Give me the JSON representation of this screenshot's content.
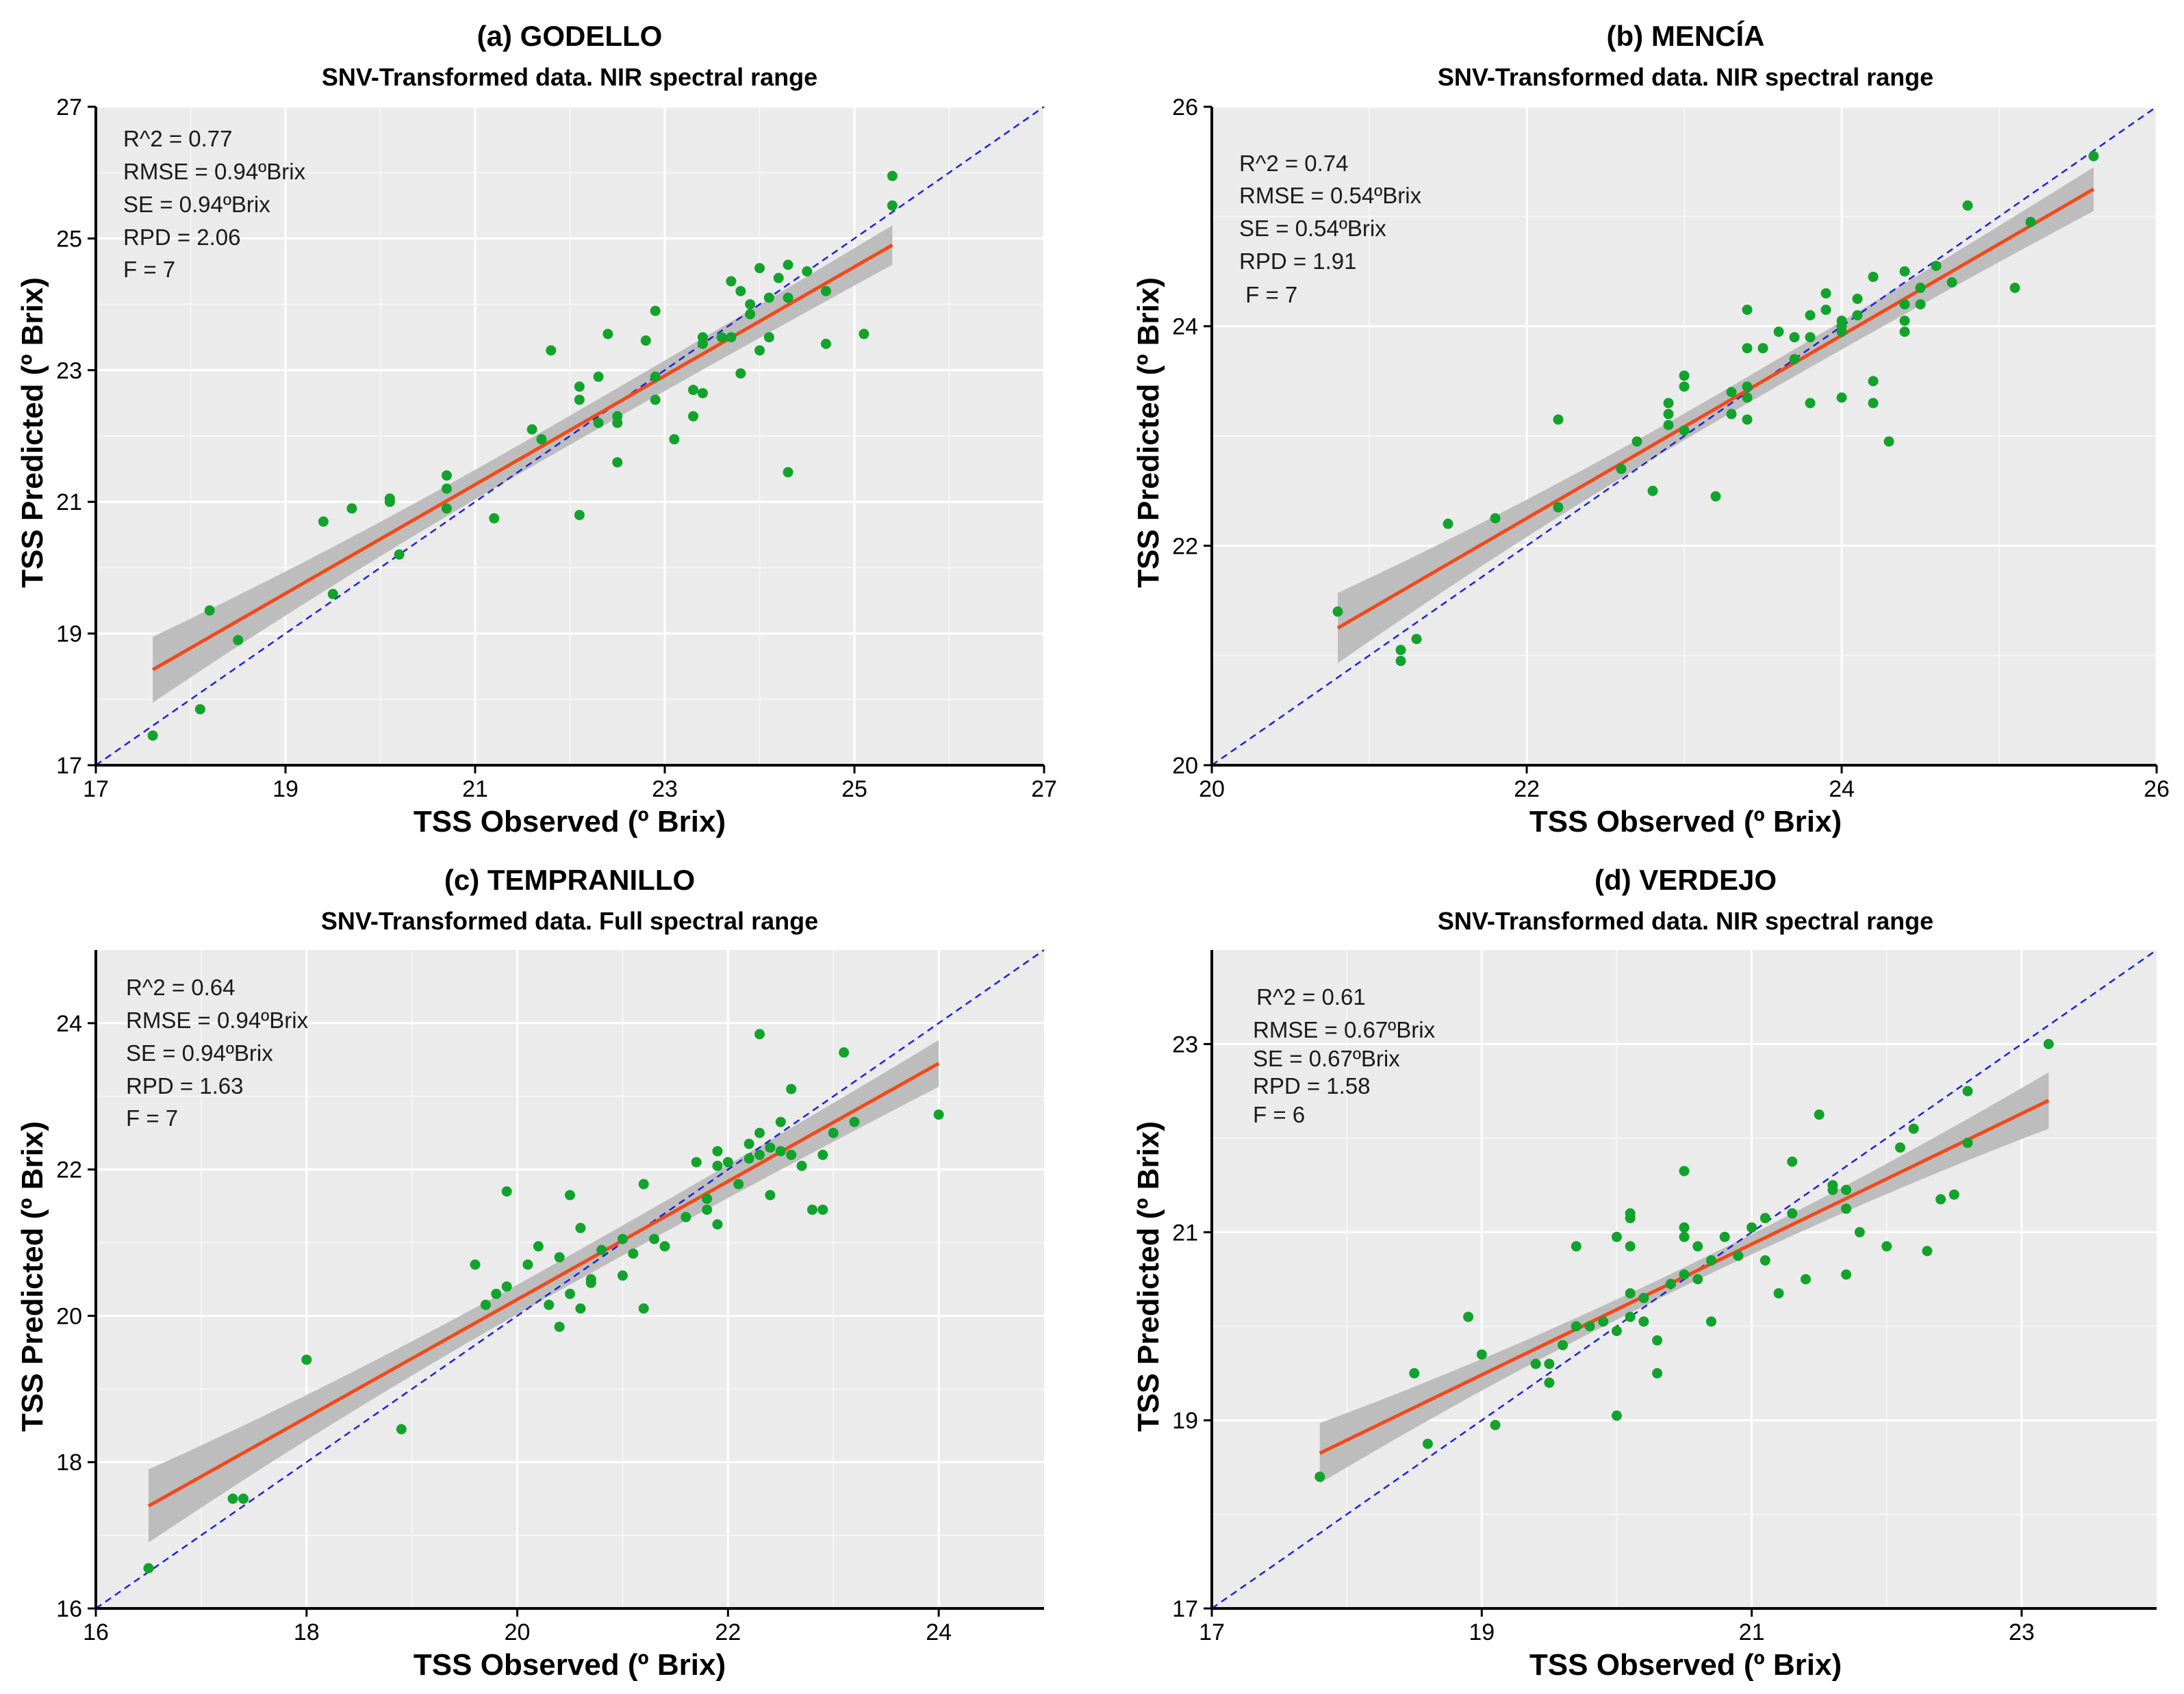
{
  "chart_data": [
    {
      "type": "scatter",
      "panel": "(a) GODELLO",
      "title": "(a) GODELLO",
      "subtitle": "SNV-Transformed data. NIR spectral range",
      "xlabel": "TSS Observed (º Brix)",
      "ylabel": "TSS Predicted (º Brix)",
      "xlim": [
        17,
        27
      ],
      "ylim": [
        17,
        27
      ],
      "xticks": [
        17,
        19,
        21,
        23,
        25,
        27
      ],
      "yticks": [
        17,
        19,
        21,
        23,
        25,
        27
      ],
      "stats": [
        "R^2 = 0.77",
        "RMSE = 0.94ºBrix",
        "SE = 0.94ºBrix",
        "RPD = 2.06",
        "F = 7"
      ],
      "regression": {
        "x1": 17.6,
        "y1": 18.45,
        "x2": 25.4,
        "y2": 24.9,
        "band_lo": 0.5,
        "band_mid": 0.22,
        "band_hi": 0.3
      },
      "points": [
        [
          17.6,
          17.45
        ],
        [
          18.1,
          17.85
        ],
        [
          18.2,
          19.35
        ],
        [
          18.5,
          18.9
        ],
        [
          19.4,
          20.7
        ],
        [
          19.5,
          19.6
        ],
        [
          19.7,
          20.9
        ],
        [
          20.1,
          21.05
        ],
        [
          20.1,
          21.0
        ],
        [
          20.2,
          20.2
        ],
        [
          20.7,
          21.4
        ],
        [
          20.7,
          21.2
        ],
        [
          20.7,
          20.9
        ],
        [
          21.2,
          20.75
        ],
        [
          21.6,
          22.1
        ],
        [
          21.7,
          21.95
        ],
        [
          21.8,
          23.3
        ],
        [
          22.1,
          22.75
        ],
        [
          22.1,
          22.55
        ],
        [
          22.1,
          20.8
        ],
        [
          22.3,
          22.9
        ],
        [
          22.3,
          22.2
        ],
        [
          22.4,
          23.55
        ],
        [
          22.5,
          22.3
        ],
        [
          22.5,
          22.2
        ],
        [
          22.5,
          21.6
        ],
        [
          22.8,
          23.45
        ],
        [
          22.9,
          23.9
        ],
        [
          22.9,
          22.9
        ],
        [
          22.9,
          22.55
        ],
        [
          23.1,
          21.95
        ],
        [
          23.3,
          22.7
        ],
        [
          23.3,
          22.3
        ],
        [
          23.4,
          23.5
        ],
        [
          23.4,
          23.4
        ],
        [
          23.4,
          22.65
        ],
        [
          23.6,
          23.5
        ],
        [
          23.7,
          23.5
        ],
        [
          23.7,
          24.35
        ],
        [
          23.8,
          24.2
        ],
        [
          23.8,
          22.95
        ],
        [
          23.9,
          24.0
        ],
        [
          23.9,
          23.85
        ],
        [
          24.0,
          24.55
        ],
        [
          24.0,
          23.3
        ],
        [
          24.1,
          24.1
        ],
        [
          24.1,
          23.5
        ],
        [
          24.2,
          24.4
        ],
        [
          24.3,
          24.6
        ],
        [
          24.3,
          24.1
        ],
        [
          24.3,
          21.45
        ],
        [
          24.5,
          24.5
        ],
        [
          24.7,
          24.2
        ],
        [
          24.7,
          23.4
        ],
        [
          25.1,
          23.55
        ],
        [
          25.4,
          25.95
        ],
        [
          25.4,
          25.5
        ]
      ]
    },
    {
      "type": "scatter",
      "panel": "(b) MENCÍA",
      "title": "(b) MENCÍA",
      "subtitle": "SNV-Transformed data. NIR spectral range",
      "xlabel": "TSS Observed (º Brix)",
      "ylabel": "TSS Predicted (º Brix)",
      "xlim": [
        20,
        26
      ],
      "ylim": [
        20,
        26
      ],
      "xticks": [
        20,
        22,
        24,
        26
      ],
      "yticks": [
        20,
        22,
        24,
        26
      ],
      "stats": [
        "R^2 = 0.74",
        "RMSE = 0.54ºBrix",
        "SE = 0.54ºBrix",
        "RPD = 1.91",
        " F = 7"
      ],
      "regression": {
        "x1": 20.8,
        "y1": 21.25,
        "x2": 25.6,
        "y2": 25.25,
        "band_lo": 0.32,
        "band_mid": 0.12,
        "band_hi": 0.2
      },
      "points": [
        [
          20.8,
          21.4
        ],
        [
          21.2,
          21.05
        ],
        [
          21.2,
          20.95
        ],
        [
          21.3,
          21.15
        ],
        [
          21.5,
          22.2
        ],
        [
          21.8,
          22.25
        ],
        [
          22.2,
          23.15
        ],
        [
          22.2,
          22.35
        ],
        [
          22.6,
          22.7
        ],
        [
          22.7,
          22.95
        ],
        [
          22.8,
          22.5
        ],
        [
          22.9,
          23.3
        ],
        [
          22.9,
          23.2
        ],
        [
          22.9,
          23.1
        ],
        [
          23.0,
          23.55
        ],
        [
          23.0,
          23.45
        ],
        [
          23.0,
          23.05
        ],
        [
          23.2,
          22.45
        ],
        [
          23.3,
          23.4
        ],
        [
          23.3,
          23.2
        ],
        [
          23.4,
          24.15
        ],
        [
          23.4,
          23.8
        ],
        [
          23.4,
          23.45
        ],
        [
          23.4,
          23.35
        ],
        [
          23.4,
          23.15
        ],
        [
          23.5,
          23.8
        ],
        [
          23.6,
          23.95
        ],
        [
          23.7,
          23.9
        ],
        [
          23.7,
          23.7
        ],
        [
          23.8,
          24.1
        ],
        [
          23.8,
          23.9
        ],
        [
          23.8,
          23.3
        ],
        [
          23.9,
          24.3
        ],
        [
          23.9,
          24.15
        ],
        [
          24.0,
          24.05
        ],
        [
          24.0,
          24.0
        ],
        [
          24.0,
          23.95
        ],
        [
          24.0,
          23.35
        ],
        [
          24.1,
          24.25
        ],
        [
          24.1,
          24.1
        ],
        [
          24.2,
          24.45
        ],
        [
          24.2,
          23.5
        ],
        [
          24.2,
          23.3
        ],
        [
          24.3,
          22.95
        ],
        [
          24.4,
          24.5
        ],
        [
          24.4,
          24.2
        ],
        [
          24.4,
          24.05
        ],
        [
          24.4,
          23.95
        ],
        [
          24.5,
          24.35
        ],
        [
          24.5,
          24.2
        ],
        [
          24.6,
          24.55
        ],
        [
          24.7,
          24.4
        ],
        [
          24.8,
          25.1
        ],
        [
          25.1,
          24.35
        ],
        [
          25.2,
          24.95
        ],
        [
          25.6,
          25.55
        ]
      ]
    },
    {
      "type": "scatter",
      "panel": "(c) TEMPRANILLO",
      "title": "(c) TEMPRANILLO",
      "subtitle": "SNV-Transformed data. Full spectral range",
      "xlabel": "TSS Observed (º Brix)",
      "ylabel": "TSS Predicted (º Brix)",
      "xlim": [
        16,
        25
      ],
      "ylim": [
        16,
        25
      ],
      "xticks": [
        16,
        18,
        20,
        22,
        24
      ],
      "yticks": [
        16,
        18,
        20,
        22,
        24
      ],
      "stats": [
        "R^2 = 0.64",
        "RMSE = 0.94ºBrix",
        "SE = 0.94ºBrix",
        "RPD = 1.63",
        "F = 7"
      ],
      "regression": {
        "x1": 16.5,
        "y1": 17.4,
        "x2": 24.0,
        "y2": 23.45,
        "band_lo": 0.5,
        "band_mid": 0.2,
        "band_hi": 0.32
      },
      "points": [
        [
          16.5,
          16.55
        ],
        [
          17.3,
          17.5
        ],
        [
          17.4,
          17.5
        ],
        [
          18.0,
          19.4
        ],
        [
          18.9,
          18.45
        ],
        [
          19.6,
          20.7
        ],
        [
          19.7,
          20.15
        ],
        [
          19.8,
          20.3
        ],
        [
          19.9,
          21.7
        ],
        [
          19.9,
          20.4
        ],
        [
          20.1,
          20.7
        ],
        [
          20.2,
          20.95
        ],
        [
          20.3,
          20.15
        ],
        [
          20.4,
          20.8
        ],
        [
          20.4,
          19.85
        ],
        [
          20.5,
          21.65
        ],
        [
          20.5,
          20.3
        ],
        [
          20.6,
          21.2
        ],
        [
          20.6,
          20.1
        ],
        [
          20.7,
          20.5
        ],
        [
          20.7,
          20.45
        ],
        [
          20.8,
          20.9
        ],
        [
          21.0,
          21.05
        ],
        [
          21.0,
          20.55
        ],
        [
          21.1,
          20.85
        ],
        [
          21.2,
          21.8
        ],
        [
          21.2,
          20.1
        ],
        [
          21.3,
          21.05
        ],
        [
          21.4,
          20.95
        ],
        [
          21.6,
          21.35
        ],
        [
          21.7,
          22.1
        ],
        [
          21.8,
          21.6
        ],
        [
          21.8,
          21.45
        ],
        [
          21.9,
          22.25
        ],
        [
          21.9,
          22.05
        ],
        [
          21.9,
          21.25
        ],
        [
          22.0,
          22.1
        ],
        [
          22.1,
          21.8
        ],
        [
          22.2,
          22.35
        ],
        [
          22.2,
          22.15
        ],
        [
          22.3,
          23.85
        ],
        [
          22.3,
          22.5
        ],
        [
          22.3,
          22.2
        ],
        [
          22.4,
          21.65
        ],
        [
          22.4,
          22.3
        ],
        [
          22.5,
          22.65
        ],
        [
          22.5,
          22.25
        ],
        [
          22.6,
          23.1
        ],
        [
          22.6,
          22.2
        ],
        [
          22.7,
          22.05
        ],
        [
          22.8,
          21.45
        ],
        [
          22.9,
          21.45
        ],
        [
          22.9,
          22.2
        ],
        [
          23.0,
          22.5
        ],
        [
          23.1,
          23.6
        ],
        [
          23.2,
          22.65
        ],
        [
          24.0,
          22.75
        ]
      ]
    },
    {
      "type": "scatter",
      "panel": "(d) VERDEJO",
      "title": "(d) VERDEJO",
      "subtitle": "SNV-Transformed data. NIR spectral range",
      "xlabel": "TSS Observed (º Brix)",
      "ylabel": "TSS Predicted (º Brix)",
      "xlim": [
        17,
        24
      ],
      "ylim": [
        17,
        24
      ],
      "xticks": [
        17,
        19,
        21,
        23
      ],
      "yticks": [
        17,
        19,
        21,
        23
      ],
      "stats": [
        " R^2 = 0.61",
        "RMSE = 0.67ºBrix",
        "SE = 0.67ºBrix",
        "RPD = 1.58",
        "F = 6"
      ],
      "regression": {
        "x1": 17.8,
        "y1": 18.65,
        "x2": 23.2,
        "y2": 22.4,
        "band_lo": 0.32,
        "band_mid": 0.1,
        "band_hi": 0.3
      },
      "points": [
        [
          17.8,
          18.4
        ],
        [
          18.5,
          19.5
        ],
        [
          18.6,
          18.75
        ],
        [
          18.9,
          20.1
        ],
        [
          19.0,
          19.7
        ],
        [
          19.1,
          18.95
        ],
        [
          19.4,
          19.6
        ],
        [
          19.5,
          19.6
        ],
        [
          19.5,
          19.4
        ],
        [
          19.6,
          19.8
        ],
        [
          19.7,
          20.85
        ],
        [
          19.7,
          20.0
        ],
        [
          19.8,
          20.0
        ],
        [
          19.9,
          20.05
        ],
        [
          20.0,
          20.95
        ],
        [
          20.0,
          19.95
        ],
        [
          20.0,
          19.05
        ],
        [
          20.1,
          21.2
        ],
        [
          20.1,
          21.15
        ],
        [
          20.1,
          20.85
        ],
        [
          20.1,
          20.35
        ],
        [
          20.1,
          20.1
        ],
        [
          20.2,
          20.3
        ],
        [
          20.2,
          20.05
        ],
        [
          20.3,
          19.85
        ],
        [
          20.3,
          19.5
        ],
        [
          20.4,
          20.45
        ],
        [
          20.5,
          21.65
        ],
        [
          20.5,
          21.05
        ],
        [
          20.5,
          20.95
        ],
        [
          20.5,
          20.55
        ],
        [
          20.6,
          20.5
        ],
        [
          20.6,
          20.85
        ],
        [
          20.7,
          20.7
        ],
        [
          20.7,
          20.05
        ],
        [
          20.8,
          20.95
        ],
        [
          20.9,
          20.75
        ],
        [
          21.0,
          21.05
        ],
        [
          21.1,
          21.15
        ],
        [
          21.1,
          20.7
        ],
        [
          21.2,
          20.35
        ],
        [
          21.3,
          21.75
        ],
        [
          21.3,
          21.2
        ],
        [
          21.4,
          20.5
        ],
        [
          21.5,
          22.25
        ],
        [
          21.6,
          21.5
        ],
        [
          21.6,
          21.45
        ],
        [
          21.7,
          21.45
        ],
        [
          21.7,
          21.25
        ],
        [
          21.7,
          20.55
        ],
        [
          21.8,
          21.0
        ],
        [
          22.0,
          20.85
        ],
        [
          22.1,
          21.9
        ],
        [
          22.2,
          22.1
        ],
        [
          22.3,
          20.8
        ],
        [
          22.4,
          21.35
        ],
        [
          22.5,
          21.4
        ],
        [
          22.6,
          21.95
        ],
        [
          22.6,
          22.5
        ],
        [
          23.2,
          23.0
        ]
      ]
    }
  ]
}
